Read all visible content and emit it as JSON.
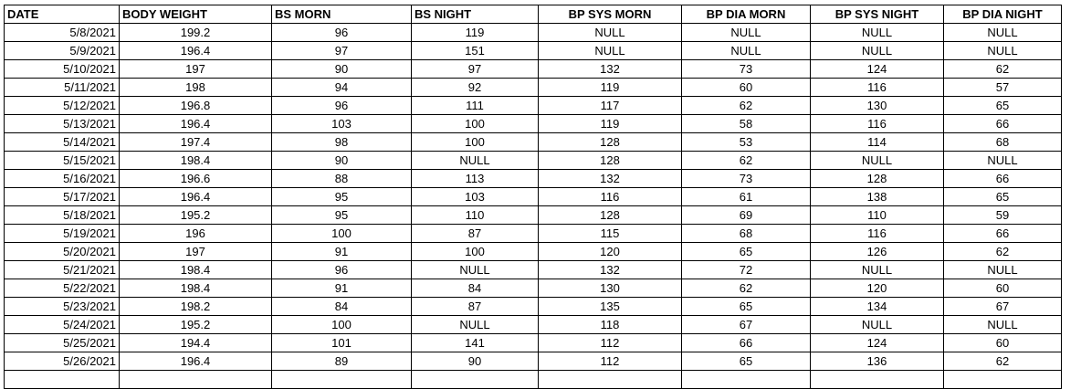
{
  "columns": [
    "DATE",
    "BODY WEIGHT",
    "BS MORN",
    "BS NIGHT",
    "BP SYS MORN",
    "BP DIA MORN",
    "BP SYS NIGHT",
    "BP DIA NIGHT"
  ],
  "rows": [
    [
      "5/8/2021",
      "199.2",
      "96",
      "119",
      "NULL",
      "NULL",
      "NULL",
      "NULL"
    ],
    [
      "5/9/2021",
      "196.4",
      "97",
      "151",
      "NULL",
      "NULL",
      "NULL",
      "NULL"
    ],
    [
      "5/10/2021",
      "197",
      "90",
      "97",
      "132",
      "73",
      "124",
      "62"
    ],
    [
      "5/11/2021",
      "198",
      "94",
      "92",
      "119",
      "60",
      "116",
      "57"
    ],
    [
      "5/12/2021",
      "196.8",
      "96",
      "111",
      "117",
      "62",
      "130",
      "65"
    ],
    [
      "5/13/2021",
      "196.4",
      "103",
      "100",
      "119",
      "58",
      "116",
      "66"
    ],
    [
      "5/14/2021",
      "197.4",
      "98",
      "100",
      "128",
      "53",
      "114",
      "68"
    ],
    [
      "5/15/2021",
      "198.4",
      "90",
      "NULL",
      "128",
      "62",
      "NULL",
      "NULL"
    ],
    [
      "5/16/2021",
      "196.6",
      "88",
      "113",
      "132",
      "73",
      "128",
      "66"
    ],
    [
      "5/17/2021",
      "196.4",
      "95",
      "103",
      "116",
      "61",
      "138",
      "65"
    ],
    [
      "5/18/2021",
      "195.2",
      "95",
      "110",
      "128",
      "69",
      "110",
      "59"
    ],
    [
      "5/19/2021",
      "196",
      "100",
      "87",
      "115",
      "68",
      "116",
      "66"
    ],
    [
      "5/20/2021",
      "197",
      "91",
      "100",
      "120",
      "65",
      "126",
      "62"
    ],
    [
      "5/21/2021",
      "198.4",
      "96",
      "NULL",
      "132",
      "72",
      "NULL",
      "NULL"
    ],
    [
      "5/22/2021",
      "198.4",
      "91",
      "84",
      "130",
      "62",
      "120",
      "60"
    ],
    [
      "5/23/2021",
      "198.2",
      "84",
      "87",
      "135",
      "65",
      "134",
      "67"
    ],
    [
      "5/24/2021",
      "195.2",
      "100",
      "NULL",
      "118",
      "67",
      "NULL",
      "NULL"
    ],
    [
      "5/25/2021",
      "194.4",
      "101",
      "141",
      "112",
      "66",
      "124",
      "60"
    ],
    [
      "5/26/2021",
      "196.4",
      "89",
      "90",
      "112",
      "65",
      "136",
      "62"
    ]
  ]
}
